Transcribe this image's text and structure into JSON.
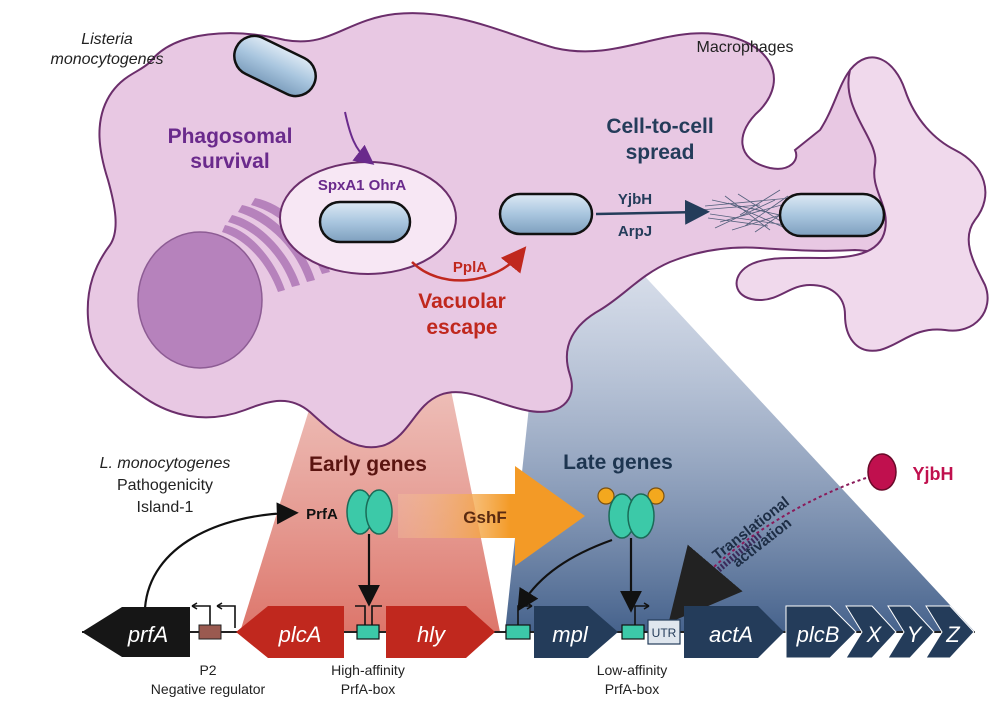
{
  "host": {
    "listeria_line1": "Listeria",
    "listeria_line2": "monocytogenes",
    "macrophages": "Macrophages"
  },
  "stages": {
    "phagosomal_line1": "Phagosomal",
    "phagosomal_line2": "survival",
    "phago_genes": "SpxA1 OhrA",
    "escape_protein": "PplA",
    "escape_line1": "Vacuolar",
    "escape_line2": "escape",
    "spread_line1": "Cell-to-cell",
    "spread_line2": "spread",
    "spread_protein1": "YjbH",
    "spread_protein2": "ArpJ"
  },
  "island": {
    "line1": "L. monocytogenes",
    "line2": "Pathogenicity",
    "line3": "Island-1"
  },
  "regulation": {
    "early_genes": "Early genes",
    "late_genes": "Late genes",
    "prfa_label": "PrfA",
    "gshf_label": "GshF",
    "yjbh_label": "YjbH",
    "translational_line1": "Translational",
    "translational_line2": "activation"
  },
  "genes": {
    "prfA": "prfA",
    "plcA": "plcA",
    "hly": "hly",
    "mpl": "mpl",
    "utr": "UTR",
    "actA": "actA",
    "plcB": "plcB",
    "x": "X",
    "y": "Y",
    "z": "Z"
  },
  "captions": {
    "p2_line1": "P2",
    "p2_line2": "Negative regulator",
    "high_line1": "High-affinity",
    "high_line2": "PrfA-box",
    "low_line1": "Low-affinity",
    "low_line2": "PrfA-box"
  },
  "colors": {
    "cell_fill": "#e8c8e3",
    "cell_stroke": "#6b2e6b",
    "early_red": "#c0281e",
    "late_navy": "#243c5a",
    "gshf_orange": "#f39a26",
    "prfa_teal": "#3cc9a8",
    "yjbh_pink": "#c0104e",
    "purple_text": "#6a2a8c"
  }
}
